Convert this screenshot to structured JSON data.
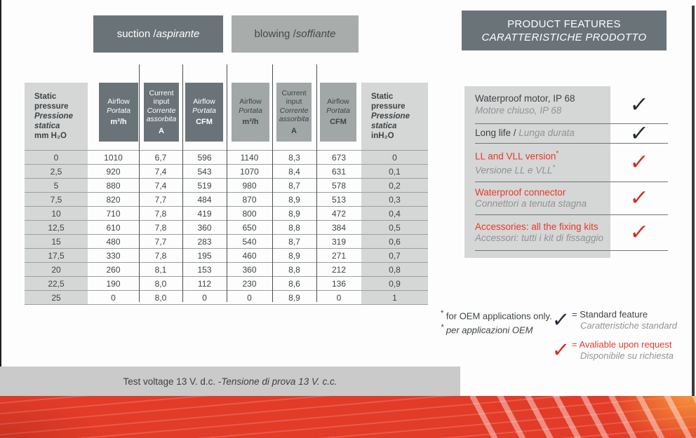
{
  "tabs": {
    "suction_en": "suction / ",
    "suction_it": "aspirante",
    "blowing_en": "blowing / ",
    "blowing_it": "soffiante"
  },
  "features_header": {
    "line1": "PRODUCT FEATURES",
    "line2": "CARATTERISTICHE PRODOTTO"
  },
  "table": {
    "left_header": {
      "en": "Static pressure",
      "it": "Pressione statica",
      "unit": "mm H₂O"
    },
    "right_header": {
      "en": "Static pressure",
      "it": "Pressione statica",
      "unit": "inH₂O"
    },
    "col_headers": [
      {
        "en": "Airflow",
        "it": "Portata",
        "unit": "m³/h"
      },
      {
        "en": "Current input",
        "it": "Corrente assorbita",
        "unit": "A"
      },
      {
        "en": "Airflow",
        "it": "Portata",
        "unit": "CFM"
      },
      {
        "en": "Airflow",
        "it": "Portata",
        "unit": "m³/h"
      },
      {
        "en": "Current input",
        "it": "Corrente assorbita",
        "unit": "A"
      },
      {
        "en": "Airflow",
        "it": "Portata",
        "unit": "CFM"
      }
    ],
    "rows": [
      {
        "c0": "0",
        "c1": "1010",
        "c2": "6,7",
        "c3": "596",
        "c4": "1140",
        "c5": "8,3",
        "c6": "673",
        "c7": "0"
      },
      {
        "c0": "2,5",
        "c1": "920",
        "c2": "7,4",
        "c3": "543",
        "c4": "1070",
        "c5": "8,4",
        "c6": "631",
        "c7": "0,1"
      },
      {
        "c0": "5",
        "c1": "880",
        "c2": "7,4",
        "c3": "519",
        "c4": "980",
        "c5": "8,7",
        "c6": "578",
        "c7": "0,2"
      },
      {
        "c0": "7,5",
        "c1": "820",
        "c2": "7,7",
        "c3": "484",
        "c4": "870",
        "c5": "8,9",
        "c6": "513",
        "c7": "0,3"
      },
      {
        "c0": "10",
        "c1": "710",
        "c2": "7,8",
        "c3": "419",
        "c4": "800",
        "c5": "8,9",
        "c6": "472",
        "c7": "0,4"
      },
      {
        "c0": "12,5",
        "c1": "610",
        "c2": "7,8",
        "c3": "360",
        "c4": "650",
        "c5": "8,8",
        "c6": "384",
        "c7": "0,5"
      },
      {
        "c0": "15",
        "c1": "480",
        "c2": "7,7",
        "c3": "283",
        "c4": "540",
        "c5": "8,7",
        "c6": "319",
        "c7": "0,6"
      },
      {
        "c0": "17,5",
        "c1": "330",
        "c2": "7,8",
        "c3": "195",
        "c4": "460",
        "c5": "8,9",
        "c6": "271",
        "c7": "0,7"
      },
      {
        "c0": "20",
        "c1": "260",
        "c2": "8,1",
        "c3": "153",
        "c4": "360",
        "c5": "8,8",
        "c6": "212",
        "c7": "0,8"
      },
      {
        "c0": "22,5",
        "c1": "190",
        "c2": "8,0",
        "c3": "112",
        "c4": "230",
        "c5": "8,6",
        "c6": "136",
        "c7": "0,9"
      },
      {
        "c0": "25",
        "c1": "0",
        "c2": "8,0",
        "c3": "0",
        "c4": "0",
        "c5": "8,9",
        "c6": "0",
        "c7": "1"
      }
    ]
  },
  "features": [
    {
      "en": "Waterproof motor, IP 68",
      "it": "Motore chiuso, IP 68",
      "check": "black"
    },
    {
      "en": "Long life / ",
      "it": "Lunga durata",
      "check": "black"
    },
    {
      "en": "LL and VLL version",
      "en_star": "*",
      "it": "Versione LL e VLL",
      "it_star": "*",
      "check": "red"
    },
    {
      "en": "Waterproof connector",
      "it": "Connettori a tenuta stagna",
      "check": "red"
    },
    {
      "en": "Accessories: all the fixing kits",
      "it": "Accessori: tutti i kit di fissaggio",
      "check": "red"
    }
  ],
  "footnote": {
    "star1": "*",
    "en": "for OEM applications only.",
    "star2": "*",
    "it": "per applicazioni OEM"
  },
  "legend": [
    {
      "check": "✓",
      "en": "= Standard feature",
      "it": "Caratteristiche standard"
    },
    {
      "check": "✓",
      "en": "= Avaliable upon request",
      "it": "Disponibile su richiesta"
    }
  ],
  "checkmark_glyph": "✓",
  "footer_bar": {
    "en": "Test voltage 13 V. d.c. - ",
    "it": "Tensione di prova 13 V. c.c."
  },
  "colors": {
    "dark_header": "#6a7478",
    "light_header": "#a8acab",
    "light_cell": "#d5d6d6",
    "red_accent": "#e5392b",
    "check_black": "#212936",
    "check_red": "#da291c",
    "stripe_red": "#e23b28",
    "bar_gray": "#c9cac9"
  }
}
